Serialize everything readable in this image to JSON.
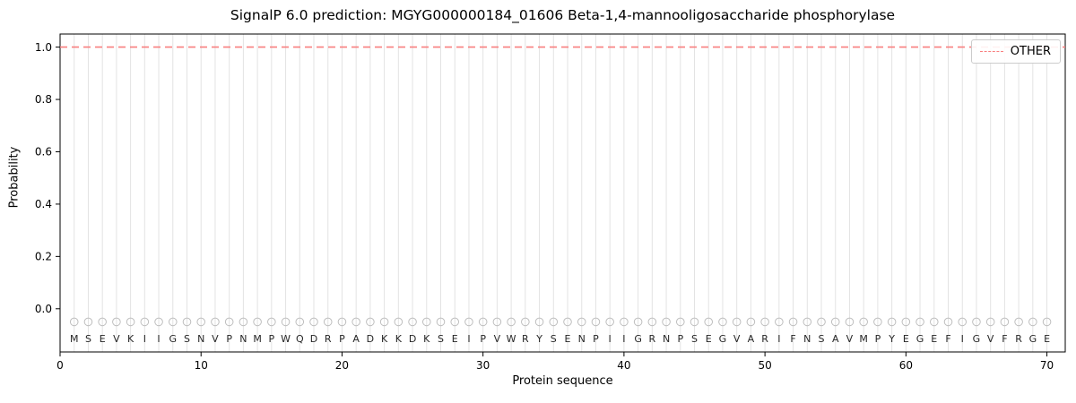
{
  "figure": {
    "title": "SignalP 6.0 prediction: MGYG000000184_01606 Beta-1,4-mannooligosaccharide phosphorylase",
    "xlabel": "Protein sequence",
    "ylabel": "Probability",
    "legend_label": "OTHER"
  },
  "chart_data": {
    "type": "line",
    "title": "SignalP 6.0 prediction: MGYG000000184_01606 Beta-1,4-mannooligosaccharide phosphorylase",
    "xlabel": "Protein sequence",
    "ylabel": "Probability",
    "xlim": [
      0,
      71.3
    ],
    "ylim": [
      -0.165,
      1.05
    ],
    "xtick_values": [
      0,
      10,
      20,
      30,
      40,
      50,
      60,
      70
    ],
    "xtick_labels": [
      "0",
      "10",
      "20",
      "30",
      "40",
      "50",
      "60",
      "70"
    ],
    "ytick_values": [
      0.0,
      0.2,
      0.4,
      0.6,
      0.8,
      1.0
    ],
    "ytick_labels": [
      "0.0",
      "0.2",
      "0.4",
      "0.6",
      "0.8",
      "1.0"
    ],
    "grid": "vertical gridline at each residue position",
    "legend": {
      "position": "upper-right",
      "entries": [
        {
          "label": "OTHER",
          "color": "#f87f7f",
          "linestyle": "dashed"
        }
      ]
    },
    "series": [
      {
        "name": "OTHER",
        "type": "hline",
        "y": 1.0,
        "x_start": 0,
        "x_end": 71.3,
        "color": "#f87f7f",
        "linestyle": "dashed"
      }
    ],
    "sequence": "MSEVKIIGSNVPNMPWQDRPADKKDKSEIPVWRYSENPIIGRNPSEGVARIFNSAVMPYEGEFIGVFRGE",
    "marker_row_y": -0.05,
    "letter_row_y": -0.1,
    "colors": {
      "grid": "#e3e3e3",
      "marker": "#bdbdbd",
      "letter": "#262626",
      "axis": "#000000",
      "other_line": "#f87f7f"
    }
  }
}
